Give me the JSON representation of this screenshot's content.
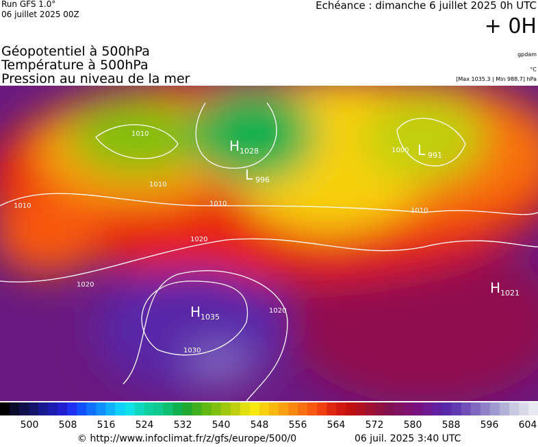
{
  "header": {
    "run": "Run GFS 1.0°",
    "date": "06 juillet 2025 00Z",
    "echeance": "Echéance : dimanche 6 juillet 2025 0h UTC",
    "offset": "+ 0H"
  },
  "legend": {
    "lines": [
      "Géopotentiel à 500hPa",
      "Température à 500hPa",
      "Pression au niveau de la mer"
    ],
    "unit_geo": "gpdam",
    "unit_temp": "°C",
    "pressure_range": "[Max 1035.3 | Min 988.7] hPa"
  },
  "map": {
    "centers": [
      {
        "letter": "H",
        "value": "1028"
      },
      {
        "letter": "L",
        "value": "996"
      },
      {
        "letter": "L",
        "value": "991"
      },
      {
        "letter": "H",
        "value": "1035"
      },
      {
        "letter": "H",
        "value": "1021"
      }
    ],
    "isobar_labels": [
      "1010",
      "1010",
      "1010",
      "1020",
      "1020",
      "1030",
      "1010",
      "1000",
      "1020",
      "1010"
    ]
  },
  "colorbar": {
    "colors": [
      "#000000",
      "#0a0a2a",
      "#10104a",
      "#14146a",
      "#181890",
      "#1c1cb0",
      "#2020d0",
      "#2030f0",
      "#1050ff",
      "#1070ff",
      "#1090ff",
      "#10b0ff",
      "#10d0ff",
      "#10e0e8",
      "#10d8c0",
      "#10d0a0",
      "#10c890",
      "#10c070",
      "#10b050",
      "#20a830",
      "#40b020",
      "#60b810",
      "#80c010",
      "#a0c810",
      "#c0d010",
      "#e0e010",
      "#f8e810",
      "#f8d010",
      "#f8b810",
      "#f8a010",
      "#f88810",
      "#f87010",
      "#f85810",
      "#f04010",
      "#e02810",
      "#d01810",
      "#c01010",
      "#b01020",
      "#a01030",
      "#901040",
      "#801050",
      "#801060",
      "#801070",
      "#781080",
      "#701890",
      "#6020a0",
      "#5828a8",
      "#6038b0",
      "#7050b8",
      "#8068c0",
      "#9080c8",
      "#a098d0",
      "#b0b0d8",
      "#c8c8e0",
      "#d8d8e8",
      "#e8e8f0"
    ],
    "labels": [
      500,
      508,
      516,
      524,
      532,
      540,
      548,
      556,
      564,
      572,
      580,
      588,
      596,
      604
    ]
  },
  "footer": {
    "url": "© http://www.infoclimat.fr/z/gfs/europe/500/0",
    "timestamp": "06 juil. 2025  3:40 UTC"
  }
}
